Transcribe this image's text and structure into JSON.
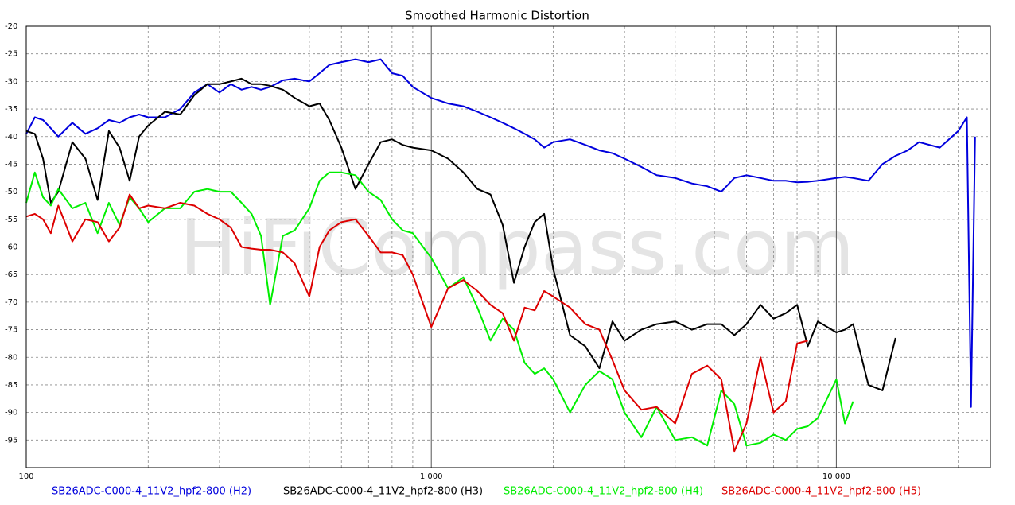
{
  "chart_data": {
    "type": "line",
    "title": "Smoothed Harmonic Distortion",
    "watermark": "HiFiCompass.com",
    "x_scale": "log",
    "grid": true,
    "legend": "bottom",
    "xlim": [
      100,
      24000
    ],
    "ylim": [
      -100,
      -20
    ],
    "xticks": [
      100,
      {
        "value": 1000,
        "label": "1 000"
      },
      {
        "value": 10000,
        "label": "10 000"
      }
    ],
    "x_minor_gridlines": [
      200,
      300,
      400,
      500,
      600,
      700,
      800,
      900,
      2000,
      3000,
      4000,
      5000,
      6000,
      7000,
      8000,
      9000,
      20000
    ],
    "yticks": [
      -20,
      -25,
      -30,
      -35,
      -40,
      -45,
      -50,
      -55,
      -60,
      -65,
      -70,
      -75,
      -80,
      -85,
      -90,
      -95
    ],
    "x": [
      100,
      105,
      110,
      115,
      120,
      130,
      140,
      150,
      160,
      170,
      180,
      190,
      200,
      220,
      240,
      260,
      280,
      300,
      320,
      340,
      360,
      380,
      400,
      430,
      460,
      500,
      530,
      560,
      600,
      650,
      700,
      750,
      800,
      850,
      900,
      1000,
      1100,
      1200,
      1300,
      1400,
      1500,
      1600,
      1700,
      1800,
      1900,
      2000,
      2200,
      2400,
      2600,
      2800,
      3000,
      3300,
      3600,
      4000,
      4400,
      4800,
      5200,
      5600,
      6000,
      6500,
      7000,
      7500,
      8000,
      8500,
      9000,
      10000,
      10500,
      11000,
      12000,
      13000,
      14000,
      15000,
      16000,
      18000,
      20000,
      21000,
      21500,
      22000
    ],
    "series": [
      {
        "name": "SB26ADC-C000-4_11V2_hpf2-800 (H2)",
        "color": "#0000dd",
        "values": [
          -39.5,
          -36.5,
          -37,
          -38.5,
          -40,
          -37.5,
          -39.5,
          -38.5,
          -37,
          -37.5,
          -36.5,
          -36,
          -36.5,
          -36.5,
          -35,
          -32,
          -30.5,
          -32,
          -30.5,
          -31.5,
          -31,
          -31.5,
          -31,
          -29.8,
          -29.5,
          -30,
          -28.5,
          -27,
          -26.5,
          -26,
          -26.5,
          -26,
          -28.5,
          -29,
          -31,
          -33,
          -34,
          -34.5,
          -35.5,
          -36.5,
          -37.5,
          -38.5,
          -39.5,
          -40.5,
          -42,
          -41,
          -40.5,
          -41.5,
          -42.5,
          -43,
          -44,
          -45.5,
          -47,
          -47.5,
          -48.5,
          -49,
          -50,
          -47.5,
          -47,
          -47.5,
          -48,
          -48,
          -48.3,
          -48.2,
          -48,
          -47.5,
          -47.3,
          -47.5,
          -48,
          -45,
          -43.5,
          -42.5,
          -41,
          -42,
          -39,
          -36.5,
          -89,
          -40
        ]
      },
      {
        "name": "SB26ADC-C000-4_11V2_hpf2-800 (H3)",
        "color": "#000000",
        "values": [
          -39,
          -39.5,
          -44,
          -52,
          -50,
          -41,
          -44,
          -51.5,
          -39,
          -42,
          -48,
          -40,
          -38,
          -35.5,
          -36,
          -32.5,
          -30.5,
          -30.5,
          -30,
          -29.5,
          -30.5,
          -30.5,
          -30.8,
          -31.5,
          -33,
          -34.5,
          -34,
          -37,
          -42,
          -49.5,
          -45,
          -41,
          -40.5,
          -41.5,
          -42,
          -42.5,
          -44,
          -46.5,
          -49.5,
          -50.5,
          -56,
          -66.5,
          -60,
          -55.5,
          -54,
          -64,
          -76,
          -78,
          -82,
          -73.5,
          -77,
          -75,
          -74,
          -73.5,
          -75,
          -74,
          -74,
          -76,
          -74,
          -70.5,
          -73,
          -72,
          -70.5,
          -78,
          -73.5,
          -75.5,
          -75,
          -74,
          -85,
          -86,
          -76.5,
          null,
          null,
          null,
          null,
          null,
          null,
          null
        ]
      },
      {
        "name": "SB26ADC-C000-4_11V2_hpf2-800 (H4)",
        "color": "#00ee00",
        "values": [
          -52,
          -46.5,
          -51,
          -52.5,
          -49.5,
          -53,
          -52,
          -57.5,
          -52,
          -56,
          -51,
          -53,
          -55.5,
          -53,
          -53,
          -50,
          -49.5,
          -50,
          -50,
          -52,
          -54,
          -58,
          -70.5,
          -58,
          -57,
          -53,
          -48,
          -46.5,
          -46.5,
          -47,
          -50,
          -51.5,
          -55,
          -57,
          -57.5,
          -62,
          -67.5,
          -65.5,
          -71,
          -77,
          -73,
          -75,
          -81,
          -83,
          -82,
          -84,
          -90,
          -85,
          -82.5,
          -84,
          -90,
          -94.5,
          -89,
          -95,
          -94.5,
          -96,
          -86,
          -88.5,
          -96,
          -95.5,
          -94,
          -95,
          -93,
          -92.5,
          -91,
          -84,
          -92,
          -88,
          null,
          null,
          null,
          null,
          null,
          null,
          null,
          null,
          null,
          null
        ]
      },
      {
        "name": "SB26ADC-C000-4_11V2_hpf2-800 (H5)",
        "color": "#dd0000",
        "values": [
          -54.5,
          -54,
          -55,
          -57.5,
          -52.5,
          -59,
          -55,
          -55.5,
          -59,
          -56.5,
          -50.5,
          -53,
          -52.5,
          -53,
          -52,
          -52.5,
          -54,
          -55,
          -56.5,
          -60,
          -60.3,
          -60.5,
          -60.5,
          -61,
          -63,
          -69,
          -60,
          -57,
          -55.5,
          -55,
          -58,
          -61,
          -61,
          -61.5,
          -65,
          -74.5,
          -67.5,
          -66,
          -68,
          -70.5,
          -72,
          -77,
          -71,
          -71.5,
          -68,
          -69,
          -71,
          -74,
          -75,
          -80.5,
          -86,
          -89.5,
          -89,
          -92,
          -83,
          -81.5,
          -84,
          -97,
          -92,
          -80,
          -90,
          -88,
          -77.5,
          -77,
          null,
          null,
          null,
          null,
          null,
          null,
          null,
          null,
          null,
          null,
          null,
          null,
          null,
          null
        ]
      }
    ]
  }
}
